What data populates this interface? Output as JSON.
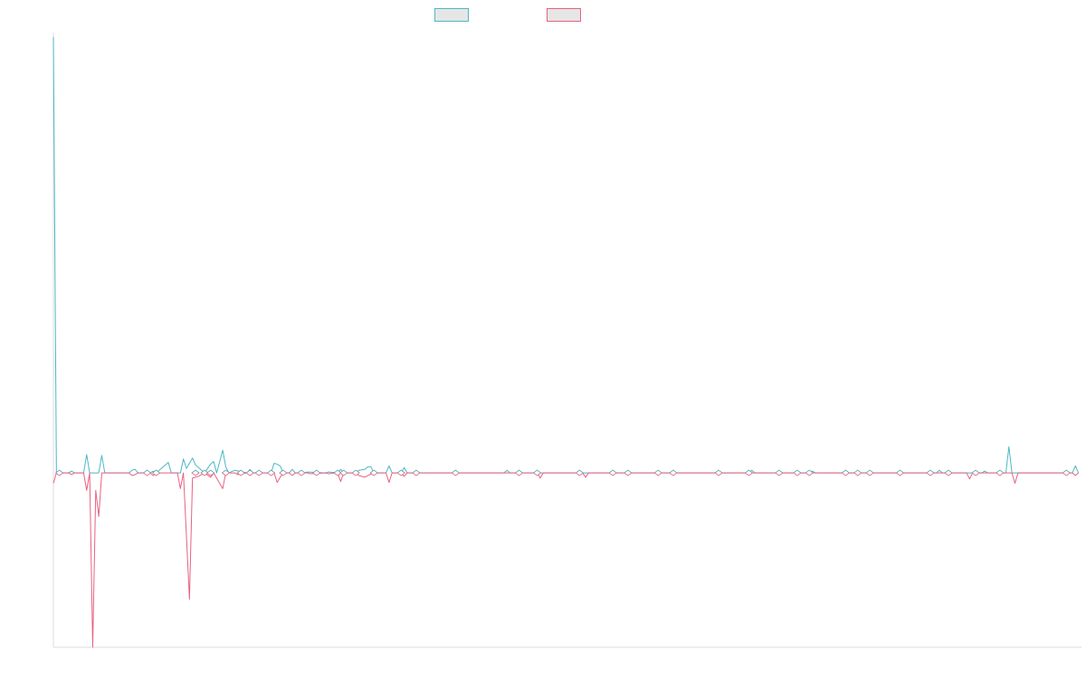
{
  "colors": {
    "series_a": "#4bb8c4",
    "series_b": "#e8627f",
    "axis": "#dddddd",
    "legend_fill": "#e6e6e6"
  },
  "legend": {
    "items": [
      {
        "label": "",
        "color": "#4bb8c4"
      },
      {
        "label": "",
        "color": "#e8627f"
      }
    ],
    "position": "top-center"
  },
  "chart_data": {
    "type": "line",
    "title": "",
    "xlabel": "",
    "ylabel": "",
    "grid": false,
    "x": [
      0,
      1,
      2,
      3,
      4,
      5,
      6,
      7,
      8,
      9,
      10,
      11,
      12,
      13,
      14,
      15,
      16,
      17,
      18,
      19,
      20,
      21,
      22,
      23,
      24,
      25,
      26,
      27,
      28,
      29,
      30,
      31,
      32,
      33,
      34,
      35,
      36,
      37,
      38,
      39,
      40,
      41,
      42,
      43,
      44,
      45,
      46,
      47,
      48,
      49,
      50,
      51,
      52,
      53,
      54,
      55,
      56,
      57,
      58,
      59,
      60,
      61,
      62,
      63,
      64,
      65,
      66,
      67,
      68,
      69,
      70,
      71,
      72,
      73,
      74,
      75,
      76,
      77,
      78,
      79,
      80,
      81,
      82,
      83,
      84,
      85,
      86,
      87,
      88,
      89,
      90,
      91,
      92,
      93,
      94,
      95,
      96,
      97,
      98,
      99,
      100,
      101,
      102,
      103,
      104,
      105,
      106,
      107,
      108,
      109,
      110,
      111,
      112,
      113,
      114,
      115,
      116,
      117,
      118,
      119,
      120,
      121,
      122,
      123,
      124,
      125,
      126,
      127,
      128,
      129,
      130,
      131,
      132,
      133,
      134,
      135,
      136,
      137,
      138,
      139,
      140,
      141,
      142,
      143,
      144,
      145,
      146,
      147,
      148,
      149,
      150,
      151,
      152,
      153,
      154,
      155,
      156,
      157,
      158,
      159,
      160,
      161,
      162,
      163,
      164,
      165,
      166,
      167,
      168,
      169,
      170,
      171,
      172,
      173,
      174,
      175,
      176,
      177,
      178,
      179,
      180,
      181,
      182,
      183,
      184,
      185,
      186,
      187,
      188,
      189,
      190,
      191,
      192,
      193,
      194,
      195,
      196,
      197,
      198,
      199,
      200,
      201,
      202,
      203,
      204,
      205,
      206,
      207,
      208,
      209,
      210,
      211,
      212,
      213,
      214,
      215,
      216,
      217,
      218,
      219,
      220,
      221,
      222,
      223,
      224,
      225,
      226,
      227,
      228,
      229,
      230,
      231,
      232,
      233,
      234,
      235,
      236,
      237,
      238,
      239,
      240,
      241,
      242,
      243,
      244,
      245,
      246,
      247,
      248,
      249,
      250,
      251,
      252,
      253,
      254,
      255,
      256,
      257,
      258,
      259,
      260,
      261,
      262,
      263,
      264,
      265,
      266,
      267,
      268,
      269,
      270,
      271,
      272,
      273,
      274,
      275,
      276,
      277,
      278,
      279,
      280,
      281,
      282,
      283,
      284,
      285,
      286,
      287,
      288,
      289,
      290,
      291,
      292,
      293,
      294,
      295,
      296,
      297,
      298,
      299,
      300,
      301,
      302,
      303,
      304,
      305,
      306,
      307,
      308,
      309,
      310,
      311,
      312,
      313,
      314,
      315,
      316,
      317,
      318,
      319,
      320,
      321,
      322,
      323,
      324,
      325,
      326,
      327,
      328,
      329,
      330,
      331,
      332,
      333,
      334,
      335,
      336,
      337,
      338,
      339,
      340
    ],
    "ylim": [
      -20,
      50.5
    ],
    "series": [
      {
        "color": "#4bb8c4",
        "points": [
          [
            0,
            50
          ],
          [
            1,
            0
          ],
          [
            5,
            0
          ],
          [
            6,
            0.2
          ],
          [
            7,
            0
          ],
          [
            10,
            0
          ],
          [
            11,
            2.1
          ],
          [
            12,
            0
          ],
          [
            15,
            0
          ],
          [
            16,
            2
          ],
          [
            17,
            0
          ],
          [
            25,
            0
          ],
          [
            26,
            0.3
          ],
          [
            27,
            0.4
          ],
          [
            28,
            0
          ],
          [
            32,
            0
          ],
          [
            33,
            0.2
          ],
          [
            34,
            0
          ],
          [
            38,
            1.2
          ],
          [
            39,
            0
          ],
          [
            42,
            0
          ],
          [
            43,
            1.6
          ],
          [
            44,
            0.5
          ],
          [
            46,
            1.7
          ],
          [
            47,
            0.9
          ],
          [
            48,
            0.6
          ],
          [
            50,
            0
          ],
          [
            52,
            1
          ],
          [
            53,
            1.3
          ],
          [
            54,
            0
          ],
          [
            56,
            2.6
          ],
          [
            57,
            0.7
          ],
          [
            58,
            0
          ],
          [
            60,
            0.3
          ],
          [
            64,
            0
          ],
          [
            65,
            0.4
          ],
          [
            66,
            0
          ],
          [
            72,
            0
          ],
          [
            73,
            1.1
          ],
          [
            74,
            1
          ],
          [
            75,
            0.8
          ],
          [
            76,
            0
          ],
          [
            78,
            0
          ],
          [
            79,
            0.4
          ],
          [
            80,
            0
          ],
          [
            83,
            0
          ],
          [
            84,
            0.1
          ],
          [
            90,
            0
          ],
          [
            91,
            0.1
          ],
          [
            94,
            0
          ],
          [
            95,
            0.4
          ],
          [
            96,
            0
          ],
          [
            100,
            0
          ],
          [
            101,
            0.3
          ],
          [
            103,
            0.4
          ],
          [
            104,
            0.7
          ],
          [
            105,
            0.7
          ],
          [
            106,
            0
          ],
          [
            110,
            0
          ],
          [
            111,
            0.8
          ],
          [
            112,
            0
          ],
          [
            115,
            0
          ],
          [
            116,
            0.6
          ],
          [
            117,
            0
          ],
          [
            122,
            0
          ],
          [
            127,
            0
          ],
          [
            149,
            0
          ],
          [
            150,
            0.3
          ],
          [
            151,
            0
          ],
          [
            230,
            0
          ],
          [
            231,
            0.3
          ],
          [
            232,
            0
          ],
          [
            250,
            0
          ],
          [
            251,
            0.2
          ],
          [
            252,
            0
          ],
          [
            292,
            0
          ],
          [
            293,
            0.3
          ],
          [
            294,
            0
          ],
          [
            307,
            0
          ],
          [
            308,
            0.2
          ],
          [
            309,
            0
          ],
          [
            315,
            0
          ],
          [
            316,
            3
          ],
          [
            317,
            0
          ],
          [
            337,
            0
          ],
          [
            338,
            0.8
          ],
          [
            339,
            0
          ],
          [
            350,
            0
          ]
        ]
      },
      {
        "color": "#e8627f",
        "points": [
          [
            0,
            -1.2
          ],
          [
            1,
            0
          ],
          [
            5,
            0
          ],
          [
            6,
            -0.2
          ],
          [
            7,
            0
          ],
          [
            10,
            0
          ],
          [
            11,
            -2
          ],
          [
            12,
            0
          ],
          [
            13,
            -20
          ],
          [
            14,
            -2
          ],
          [
            15,
            -5
          ],
          [
            16,
            0
          ],
          [
            25,
            0
          ],
          [
            26,
            -0.3
          ],
          [
            27,
            -0.2
          ],
          [
            28,
            0
          ],
          [
            32,
            0
          ],
          [
            33,
            -0.3
          ],
          [
            34,
            0
          ],
          [
            41,
            0
          ],
          [
            42,
            -1.8
          ],
          [
            43,
            0
          ],
          [
            45,
            -14.5
          ],
          [
            46,
            -0.6
          ],
          [
            48,
            -0.4
          ],
          [
            50,
            0
          ],
          [
            52,
            -0.5
          ],
          [
            53,
            0
          ],
          [
            56,
            -1.8
          ],
          [
            57,
            0
          ],
          [
            60,
            0
          ],
          [
            61,
            -0.2
          ],
          [
            64,
            0
          ],
          [
            65,
            -0.3
          ],
          [
            66,
            0
          ],
          [
            73,
            0
          ],
          [
            74,
            -1.1
          ],
          [
            75,
            -0.5
          ],
          [
            76,
            0
          ],
          [
            78,
            0
          ],
          [
            79,
            -0.3
          ],
          [
            80,
            0
          ],
          [
            84,
            0
          ],
          [
            85,
            -0.1
          ],
          [
            90,
            0
          ],
          [
            91,
            -0.1
          ],
          [
            94,
            0
          ],
          [
            95,
            -1
          ],
          [
            96,
            0
          ],
          [
            100,
            0
          ],
          [
            101,
            -0.3
          ],
          [
            103,
            -0.5
          ],
          [
            104,
            -0.3
          ],
          [
            106,
            0
          ],
          [
            110,
            0
          ],
          [
            111,
            -1.1
          ],
          [
            112,
            0
          ],
          [
            115,
            0
          ],
          [
            116,
            -0.4
          ],
          [
            117,
            0
          ],
          [
            160,
            0
          ],
          [
            161,
            -0.6
          ],
          [
            162,
            0
          ],
          [
            175,
            0
          ],
          [
            176,
            -0.5
          ],
          [
            177,
            0
          ],
          [
            302,
            0
          ],
          [
            303,
            -0.7
          ],
          [
            304,
            0
          ],
          [
            317,
            0
          ],
          [
            318,
            -1.2
          ],
          [
            319,
            0
          ],
          [
            337,
            0
          ],
          [
            338,
            -0.3
          ],
          [
            339,
            0
          ],
          [
            348,
            0
          ],
          [
            349,
            -1.8
          ],
          [
            350,
            0
          ]
        ]
      }
    ],
    "markers": [
      2,
      31,
      34,
      47,
      50,
      52,
      57,
      62,
      65,
      68,
      72,
      76,
      82,
      87,
      94,
      96,
      100,
      106,
      115,
      120,
      133,
      154,
      160,
      174,
      185,
      190,
      200,
      205,
      220,
      230,
      240,
      246,
      250,
      262,
      266,
      270,
      280,
      290,
      296,
      305,
      313,
      335
    ]
  }
}
